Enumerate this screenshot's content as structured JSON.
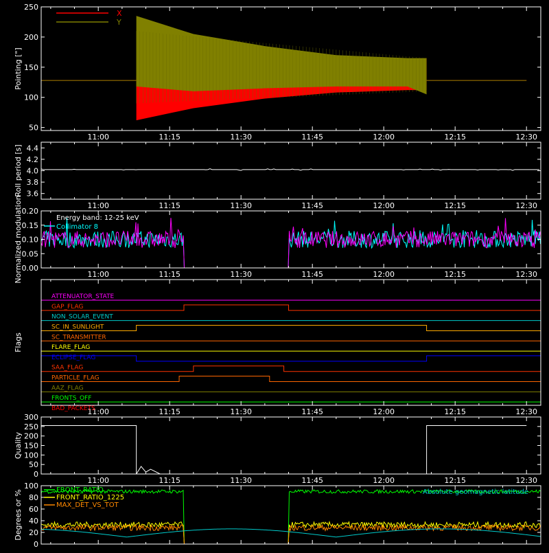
{
  "chart_data": [
    {
      "type": "line",
      "ylabel": "Pointing [\"]",
      "ylim": [
        45,
        250
      ],
      "yticks": [
        50,
        100,
        150,
        200,
        250
      ],
      "xticks": [
        "11:00",
        "11:15",
        "11:30",
        "11:45",
        "12:00",
        "12:15",
        "12:30"
      ],
      "legend": "top-left",
      "series": [
        {
          "name": "X",
          "color": "#ff0000",
          "baseline": 128,
          "x": [
            "10:48",
            "11:08",
            "11:08",
            "11:20",
            "11:35",
            "11:50",
            "12:05",
            "12:09",
            "12:09",
            "12:30"
          ],
          "upper": [
            128,
            128,
            136,
            148,
            150,
            150,
            152,
            165,
            128,
            128
          ],
          "lower": [
            128,
            128,
            62,
            82,
            98,
            108,
            112,
            112,
            128,
            128
          ]
        },
        {
          "name": "Y",
          "color": "#808000",
          "baseline": 128,
          "x": [
            "10:48",
            "11:08",
            "11:08",
            "11:20",
            "11:35",
            "11:50",
            "12:05",
            "12:09",
            "12:09",
            "12:30"
          ],
          "upper": [
            128,
            128,
            235,
            205,
            185,
            170,
            165,
            165,
            128,
            128
          ],
          "lower": [
            128,
            128,
            118,
            110,
            115,
            118,
            118,
            105,
            128,
            128
          ]
        }
      ]
    },
    {
      "type": "line",
      "ylabel": "Roll period [s]",
      "ylim": [
        3.5,
        4.5
      ],
      "yticks": [
        "3.6",
        "3.8",
        "4.0",
        "4.2",
        "4.4"
      ],
      "xticks": [
        "11:00",
        "11:15",
        "11:30",
        "11:45",
        "12:00",
        "12:15",
        "12:30"
      ],
      "series": [
        {
          "name": "",
          "color": "#ffffff",
          "value": 4.02
        }
      ]
    },
    {
      "type": "line",
      "ylabel": "Normalized modulation",
      "ylim": [
        0,
        0.2
      ],
      "yticks": [
        "0.00",
        "0.05",
        "0.10",
        "0.15",
        "0.20"
      ],
      "xticks": [
        "11:00",
        "11:15",
        "11:30",
        "11:45",
        "12:00",
        "12:15",
        "12:30"
      ],
      "legend": "top-left",
      "annotations": [
        "Energy band: 12-25 keV"
      ],
      "gap": [
        "11:18",
        "11:40"
      ],
      "series": [
        {
          "name": "Collimator 8",
          "color": "#00ffff",
          "typical": 0.1
        },
        {
          "name": "",
          "color": "#ff00ff",
          "typical": 0.1
        }
      ]
    },
    {
      "type": "line",
      "ylabel": "Flags",
      "xticks": [
        "11:00",
        "11:15",
        "11:30",
        "11:45",
        "12:00",
        "12:15",
        "12:30"
      ],
      "series": [
        {
          "name": "ATTENUATOR_STATE",
          "color": "#ff00ff",
          "x": [],
          "on": []
        },
        {
          "name": "GAP_FLAG",
          "color": "#ff3300",
          "x": [
            "11:18",
            "11:40"
          ],
          "on": [
            1,
            0
          ]
        },
        {
          "name": "NON_SOLAR_EVENT",
          "color": "#00cccc",
          "x": [],
          "on": []
        },
        {
          "name": "SC_IN_SUNLIGHT",
          "color": "#ffaa00",
          "x": [
            "11:08",
            "12:09"
          ],
          "on": [
            1,
            0
          ]
        },
        {
          "name": "SC_TRANSMITTER",
          "color": "#ff6600",
          "x": [],
          "on": []
        },
        {
          "name": "FLARE_FLAG",
          "color": "#ffff00",
          "x": [],
          "on": []
        },
        {
          "name": "ECLIPSE_FLAG",
          "color": "#0000ff",
          "x": [
            "11:08",
            "12:09"
          ],
          "on": [
            0,
            1
          ]
        },
        {
          "name": "SAA_FLAG",
          "color": "#ff3300",
          "x": [
            "11:20",
            "11:39"
          ],
          "on": [
            1,
            0
          ]
        },
        {
          "name": "PARTICLE_FLAG",
          "color": "#ff6600",
          "x": [
            "11:17",
            "11:36"
          ],
          "on": [
            1,
            0
          ]
        },
        {
          "name": "AAZ_FLAG",
          "color": "#808000",
          "x": [],
          "on": []
        },
        {
          "name": "FRONTS_OFF",
          "color": "#00ff00",
          "x": [],
          "on": []
        },
        {
          "name": "BAD_PACKETS",
          "color": "#ff0000",
          "x": [],
          "on": []
        }
      ]
    },
    {
      "type": "line",
      "ylabel": "Quality",
      "ylim": [
        0,
        300
      ],
      "yticks": [
        0,
        50,
        100,
        150,
        200,
        250,
        300
      ],
      "xticks": [
        "11:00",
        "11:15",
        "11:30",
        "11:45",
        "12:00",
        "12:15",
        "12:30"
      ],
      "series": [
        {
          "name": "",
          "color": "#ffffff",
          "x": [
            "10:48",
            "11:08",
            "11:08",
            "11:09",
            "11:10",
            "11:11",
            "11:13",
            "12:09",
            "12:09",
            "12:30"
          ],
          "y": [
            255,
            255,
            0,
            40,
            10,
            25,
            0,
            0,
            255,
            255
          ]
        }
      ]
    },
    {
      "type": "line",
      "ylabel": "Degrees or %",
      "ylim": [
        0,
        100
      ],
      "yticks": [
        0,
        20,
        40,
        60,
        80,
        100
      ],
      "legend": "top-left",
      "annotations": [
        "Absolute geomagnetic latitude"
      ],
      "series": [
        {
          "name": "FRONT_RATIO",
          "color": "#00ff00",
          "typical": 90
        },
        {
          "name": "FRONT_RATIO_1225",
          "color": "#ffff00",
          "typical": 33
        },
        {
          "name": "MAX_DET_VS_TOT",
          "color": "#ff8800",
          "typical": 28
        },
        {
          "name": "Absolute geomagnetic latitude",
          "color": "#00cccc",
          "typical": 15
        }
      ]
    }
  ]
}
